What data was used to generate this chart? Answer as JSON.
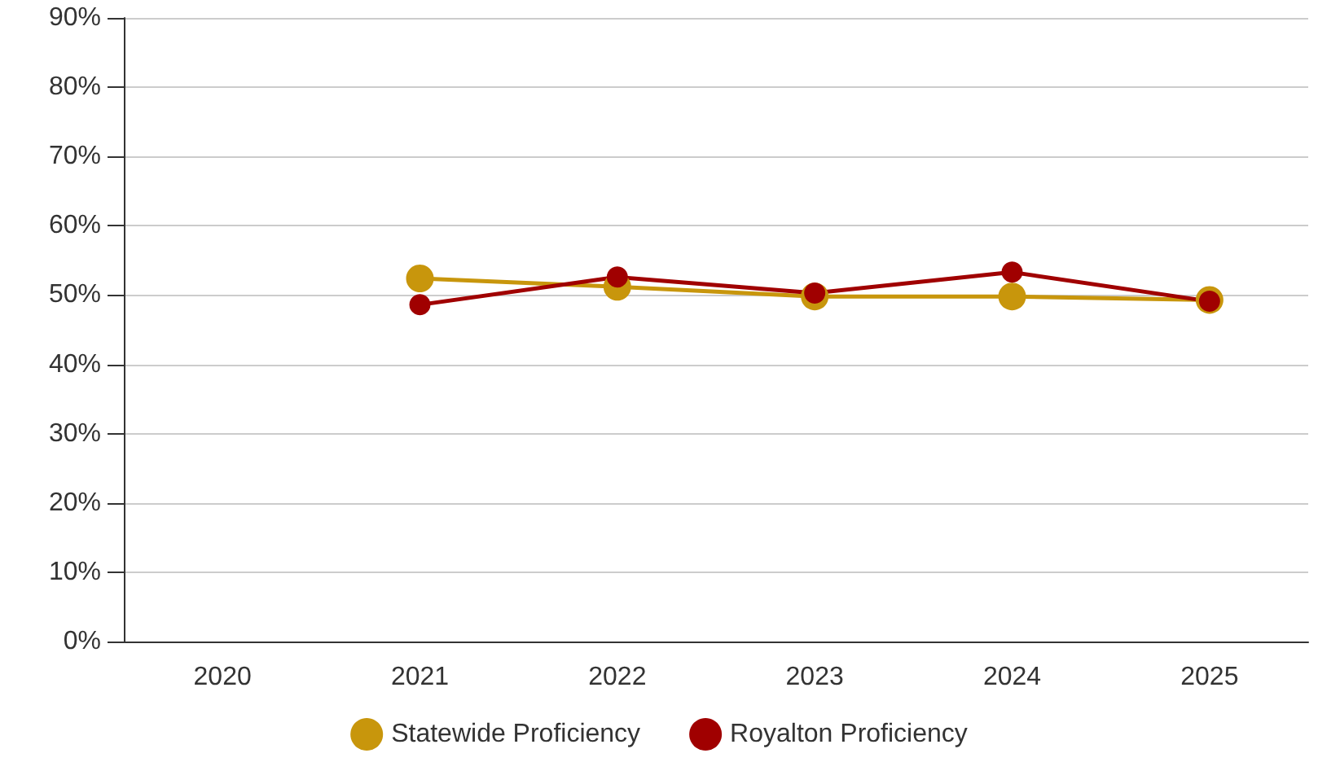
{
  "chart_data": {
    "type": "line",
    "categories": [
      "2020",
      "2021",
      "2022",
      "2023",
      "2024",
      "2025"
    ],
    "series": [
      {
        "name": "Statewide Proficiency",
        "color": "#c8960c",
        "values": [
          null,
          52.4,
          51.2,
          49.8,
          49.8,
          49.3
        ]
      },
      {
        "name": "Royalton Proficiency",
        "color": "#a00000",
        "values": [
          null,
          48.6,
          52.6,
          50.3,
          53.3,
          49.1
        ]
      }
    ],
    "ylim": [
      0,
      90
    ],
    "yticks": [
      {
        "value": 0,
        "label": "0%"
      },
      {
        "value": 10,
        "label": "10%"
      },
      {
        "value": 20,
        "label": "20%"
      },
      {
        "value": 30,
        "label": "30%"
      },
      {
        "value": 40,
        "label": "40%"
      },
      {
        "value": 50,
        "label": "50%"
      },
      {
        "value": 60,
        "label": "60%"
      },
      {
        "value": 70,
        "label": "70%"
      },
      {
        "value": 80,
        "label": "80%"
      },
      {
        "value": 90,
        "label": "90%"
      }
    ],
    "grid": "y",
    "legend": "bottom",
    "marker": "circle",
    "line_style": "solid"
  }
}
